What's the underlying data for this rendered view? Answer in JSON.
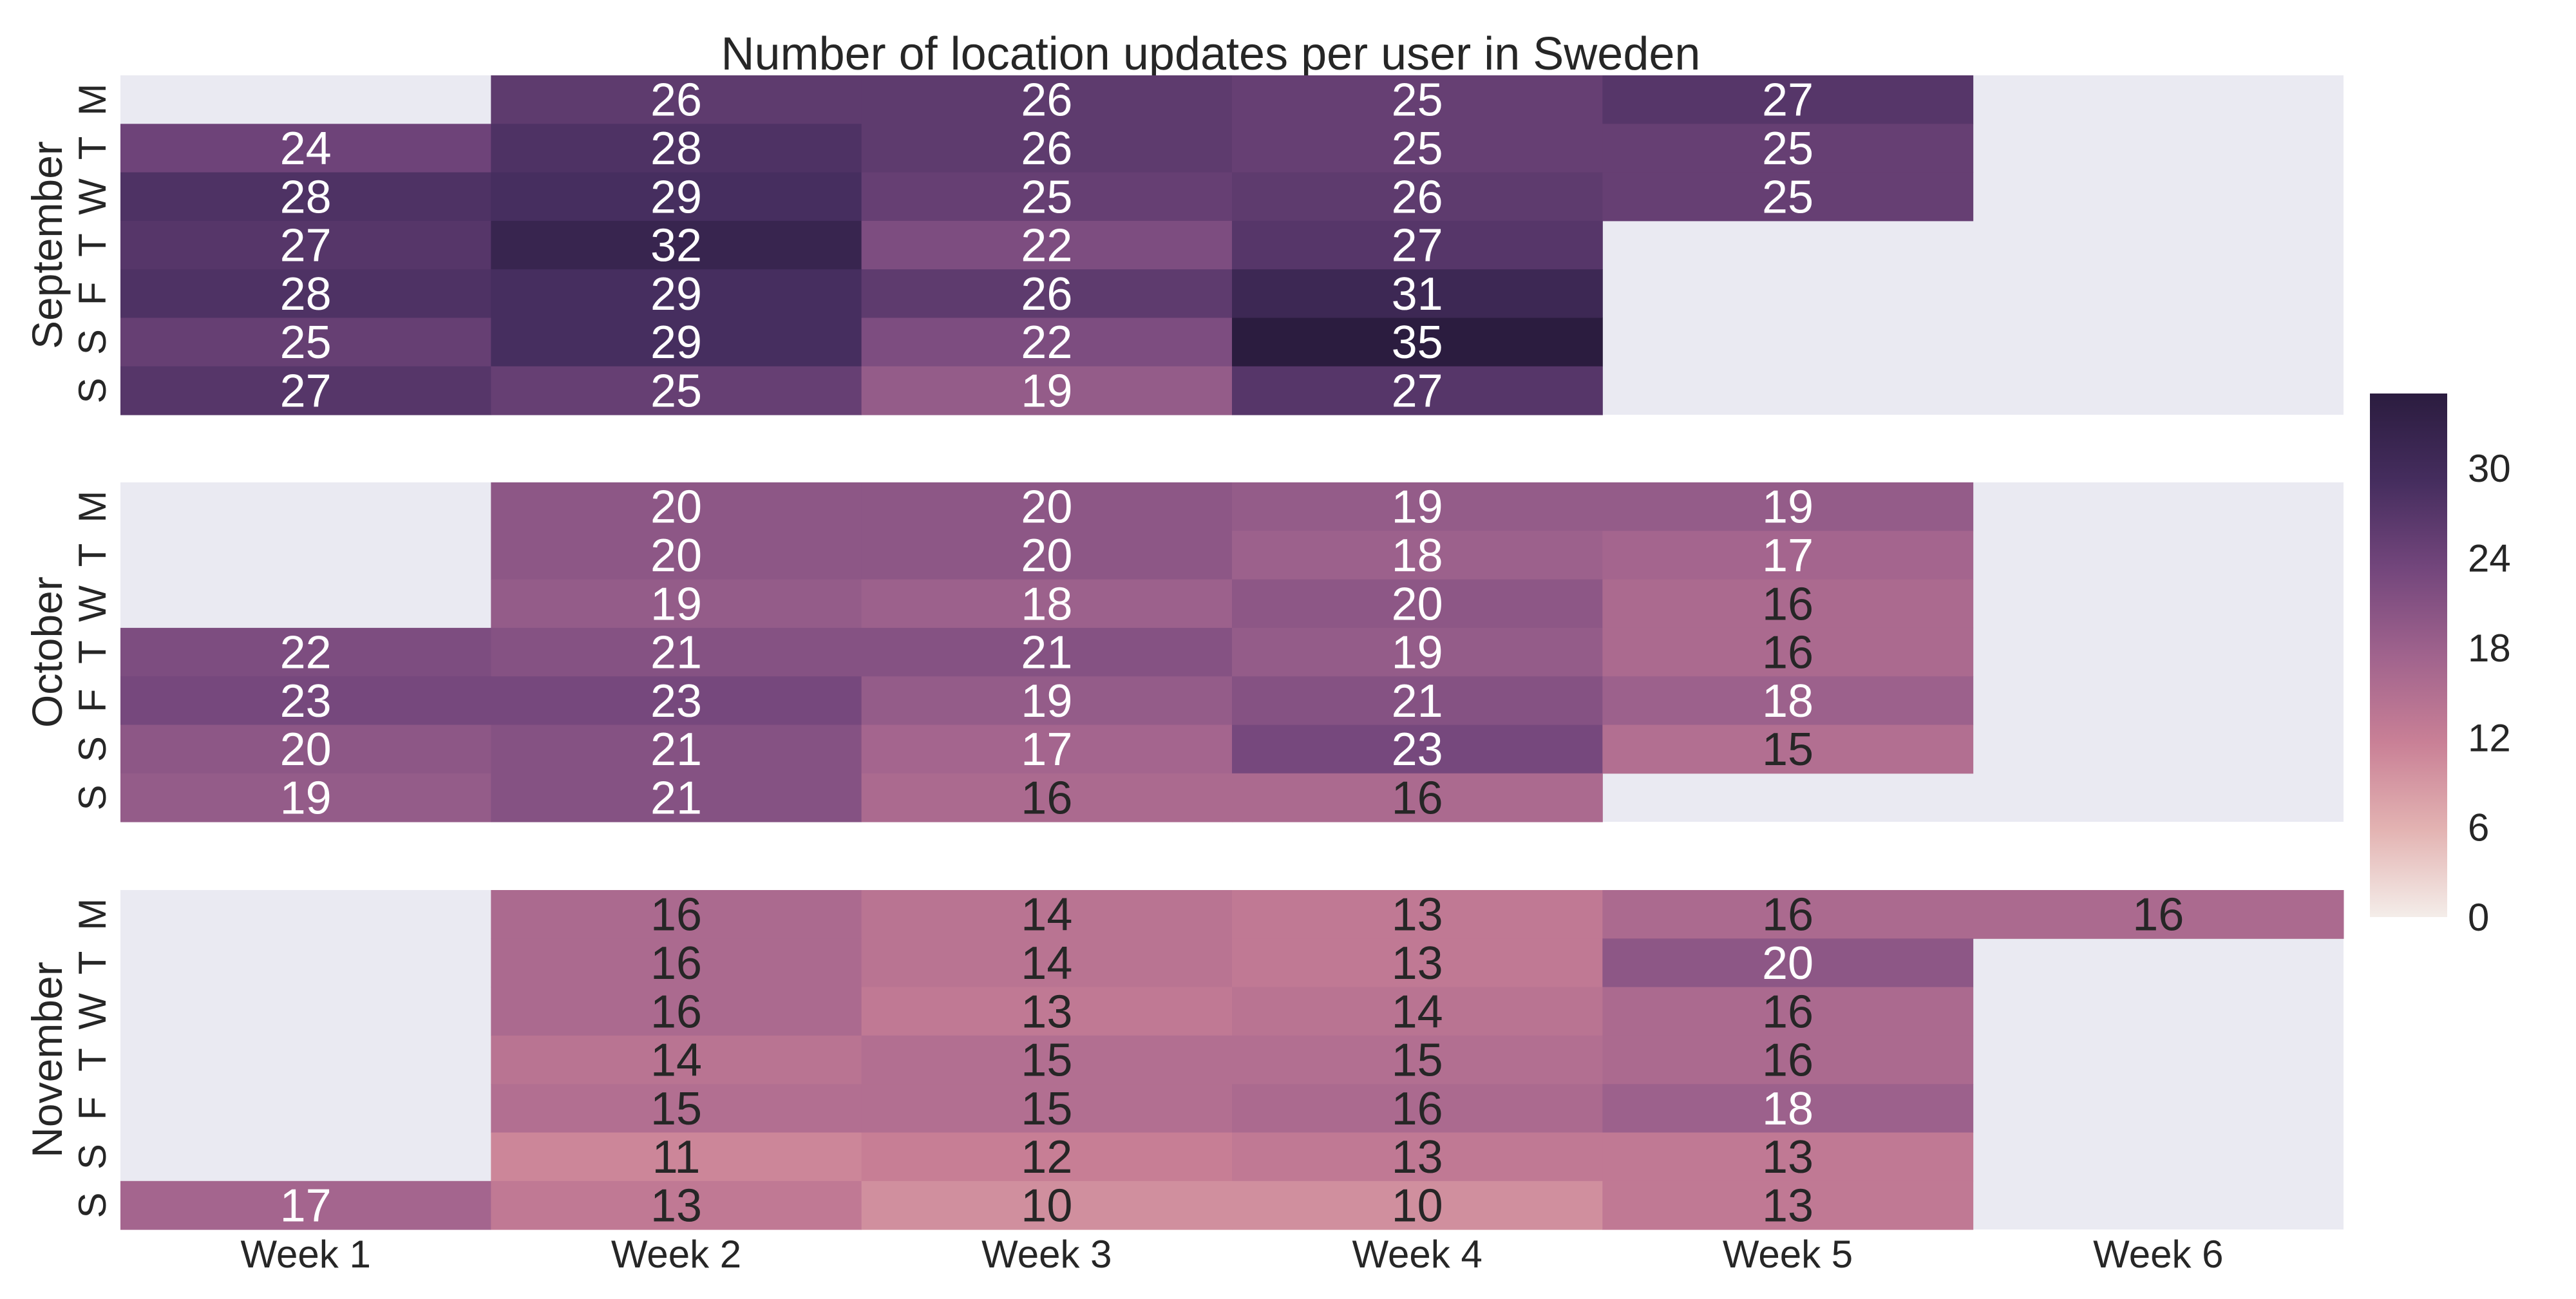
{
  "chart_data": {
    "type": "heatmap",
    "title": "Number of location updates per user in Sweden",
    "x_categories": [
      "Week 1",
      "Week 2",
      "Week 3",
      "Week 4",
      "Week 5",
      "Week 6"
    ],
    "day_labels": [
      "M",
      "T",
      "W",
      "T",
      "F",
      "S",
      "S"
    ],
    "grid": false,
    "colormap": [
      "#f4ede9",
      "#e3b3b2",
      "#c98096",
      "#a0638d",
      "#73467c",
      "#452d5e",
      "#2b1c3f"
    ],
    "color_range": [
      0,
      35
    ],
    "missing_color": "#eaeaf2",
    "colorbar": {
      "ticks": [
        0,
        6,
        12,
        18,
        24,
        30
      ],
      "placement": "right"
    },
    "panels": [
      {
        "month": "September",
        "values": [
          [
            null,
            26,
            26,
            25,
            27,
            null
          ],
          [
            24,
            28,
            26,
            25,
            25,
            null
          ],
          [
            28,
            29,
            25,
            26,
            25,
            null
          ],
          [
            27,
            32,
            22,
            27,
            null,
            null
          ],
          [
            28,
            29,
            26,
            31,
            null,
            null
          ],
          [
            25,
            29,
            22,
            35,
            null,
            null
          ],
          [
            27,
            25,
            19,
            27,
            null,
            null
          ]
        ]
      },
      {
        "month": "October",
        "values": [
          [
            null,
            20,
            20,
            19,
            19,
            null
          ],
          [
            null,
            20,
            20,
            18,
            17,
            null
          ],
          [
            null,
            19,
            18,
            20,
            16,
            null
          ],
          [
            22,
            21,
            21,
            19,
            16,
            null
          ],
          [
            23,
            23,
            19,
            21,
            18,
            null
          ],
          [
            20,
            21,
            17,
            23,
            15,
            null
          ],
          [
            19,
            21,
            16,
            16,
            null,
            null
          ]
        ]
      },
      {
        "month": "November",
        "values": [
          [
            null,
            16,
            14,
            13,
            16,
            16
          ],
          [
            null,
            16,
            14,
            13,
            20,
            null
          ],
          [
            null,
            16,
            13,
            14,
            16,
            null
          ],
          [
            null,
            14,
            15,
            15,
            16,
            null
          ],
          [
            null,
            15,
            15,
            16,
            18,
            null
          ],
          [
            null,
            11,
            12,
            13,
            13,
            null
          ],
          [
            17,
            13,
            10,
            10,
            13,
            null
          ]
        ]
      }
    ]
  }
}
